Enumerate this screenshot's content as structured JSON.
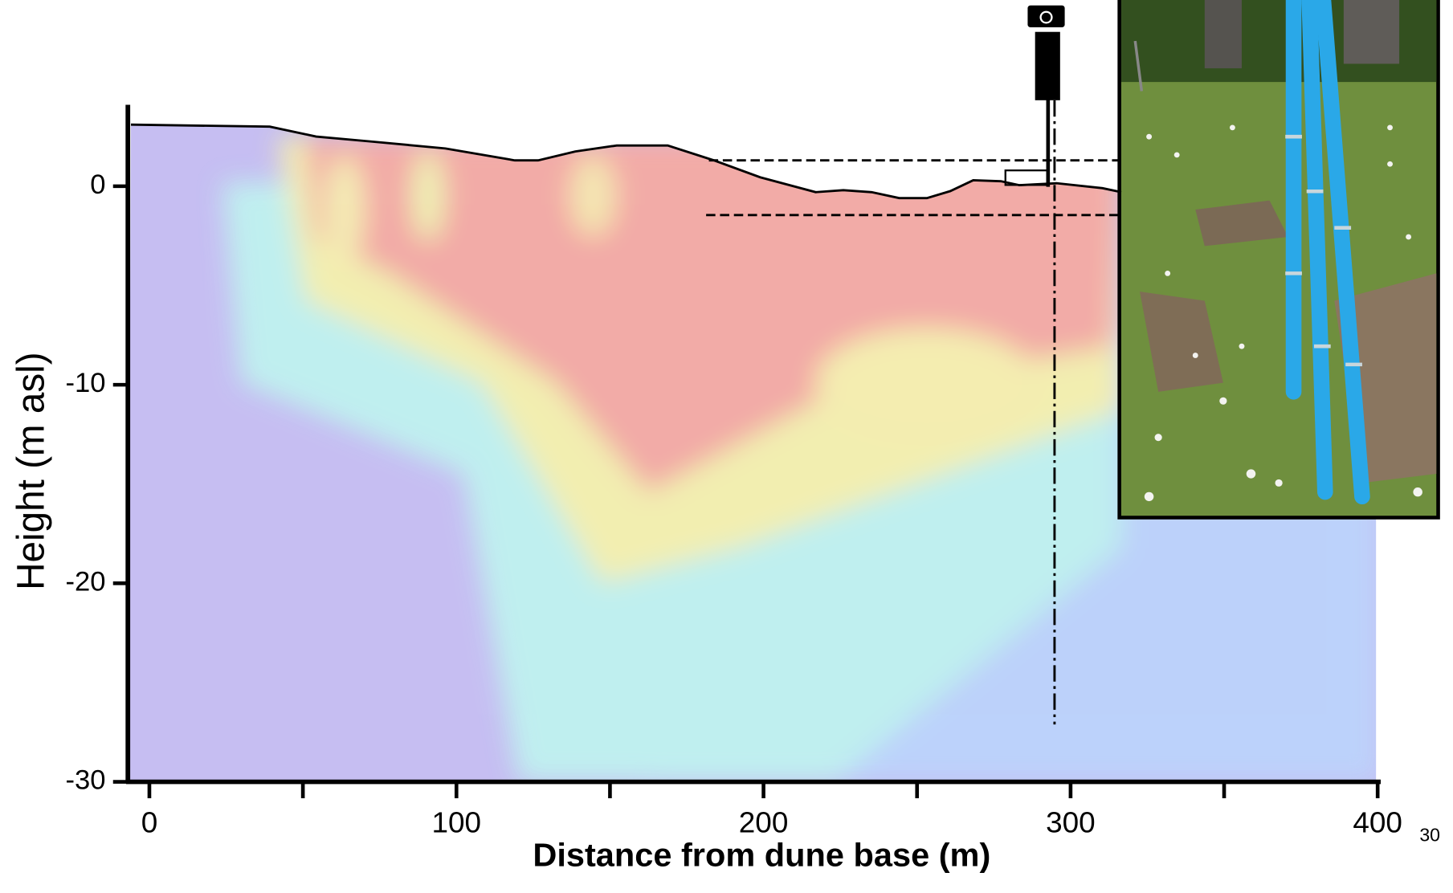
{
  "chart_data": {
    "type": "line",
    "x_label": "Distance from dune base (m)",
    "y_label": "Height (m asl)",
    "x": [
      -6,
      39.2,
      54.3,
      72.3,
      96.4,
      119,
      126.6,
      138.7,
      152.2,
      168.8,
      183.9,
      198.9,
      217,
      226,
      235.2,
      244.2,
      253.2,
      260.8,
      268.3,
      277.3,
      283.3,
      295.4,
      310.4,
      316.5
    ],
    "values": [
      3.1,
      3.0,
      2.5,
      2.25,
      1.9,
      1.3,
      1.3,
      1.75,
      2.05,
      2.05,
      1.3,
      0.45,
      -0.3,
      -0.2,
      -0.3,
      -0.6,
      -0.6,
      -0.25,
      0.3,
      0.25,
      0.05,
      0.15,
      -0.1,
      -0.3
    ],
    "color": "#000000",
    "xlim": [
      -7,
      401
    ],
    "ylim": [
      -30,
      4.1
    ],
    "xticks": [
      0,
      100,
      200,
      300,
      400
    ],
    "xminorticks": [
      50,
      150,
      250,
      350
    ],
    "yticks": [
      0,
      -10,
      -20,
      -30
    ]
  },
  "page_number": "30"
}
